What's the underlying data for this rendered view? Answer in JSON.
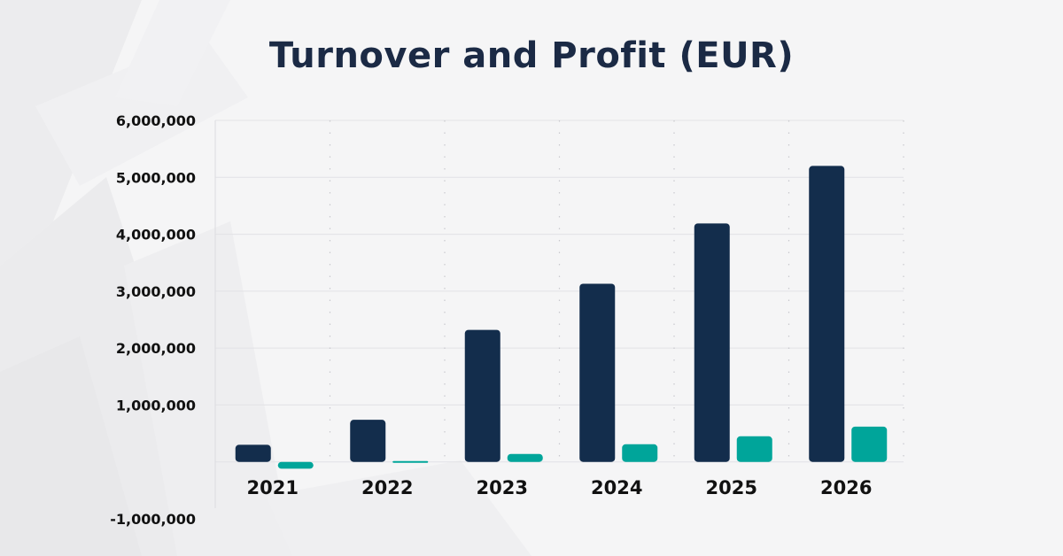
{
  "chart_data": {
    "type": "bar",
    "title": "Turnover and Profit (EUR)",
    "categories": [
      "2021",
      "2022",
      "2023",
      "2024",
      "2025",
      "2026"
    ],
    "series": [
      {
        "values": [
          300000,
          740000,
          2320000,
          3130000,
          4190000,
          5200000
        ],
        "color": "#132d4c"
      },
      {
        "values": [
          -120000,
          15000,
          140000,
          310000,
          450000,
          620000
        ],
        "color": "#00a59a"
      }
    ],
    "ylim": [
      -1000000,
      6000000
    ],
    "yticks": [
      6000000,
      5000000,
      4000000,
      3000000,
      2000000,
      1000000,
      -1000000
    ],
    "ytick_labels": [
      "6,000,000",
      "5,000,000",
      "4,000,000",
      "3,000,000",
      "2,000,000",
      "1,000,000",
      "-1,000,000"
    ],
    "grid": true,
    "xlabel": "",
    "ylabel": ""
  }
}
